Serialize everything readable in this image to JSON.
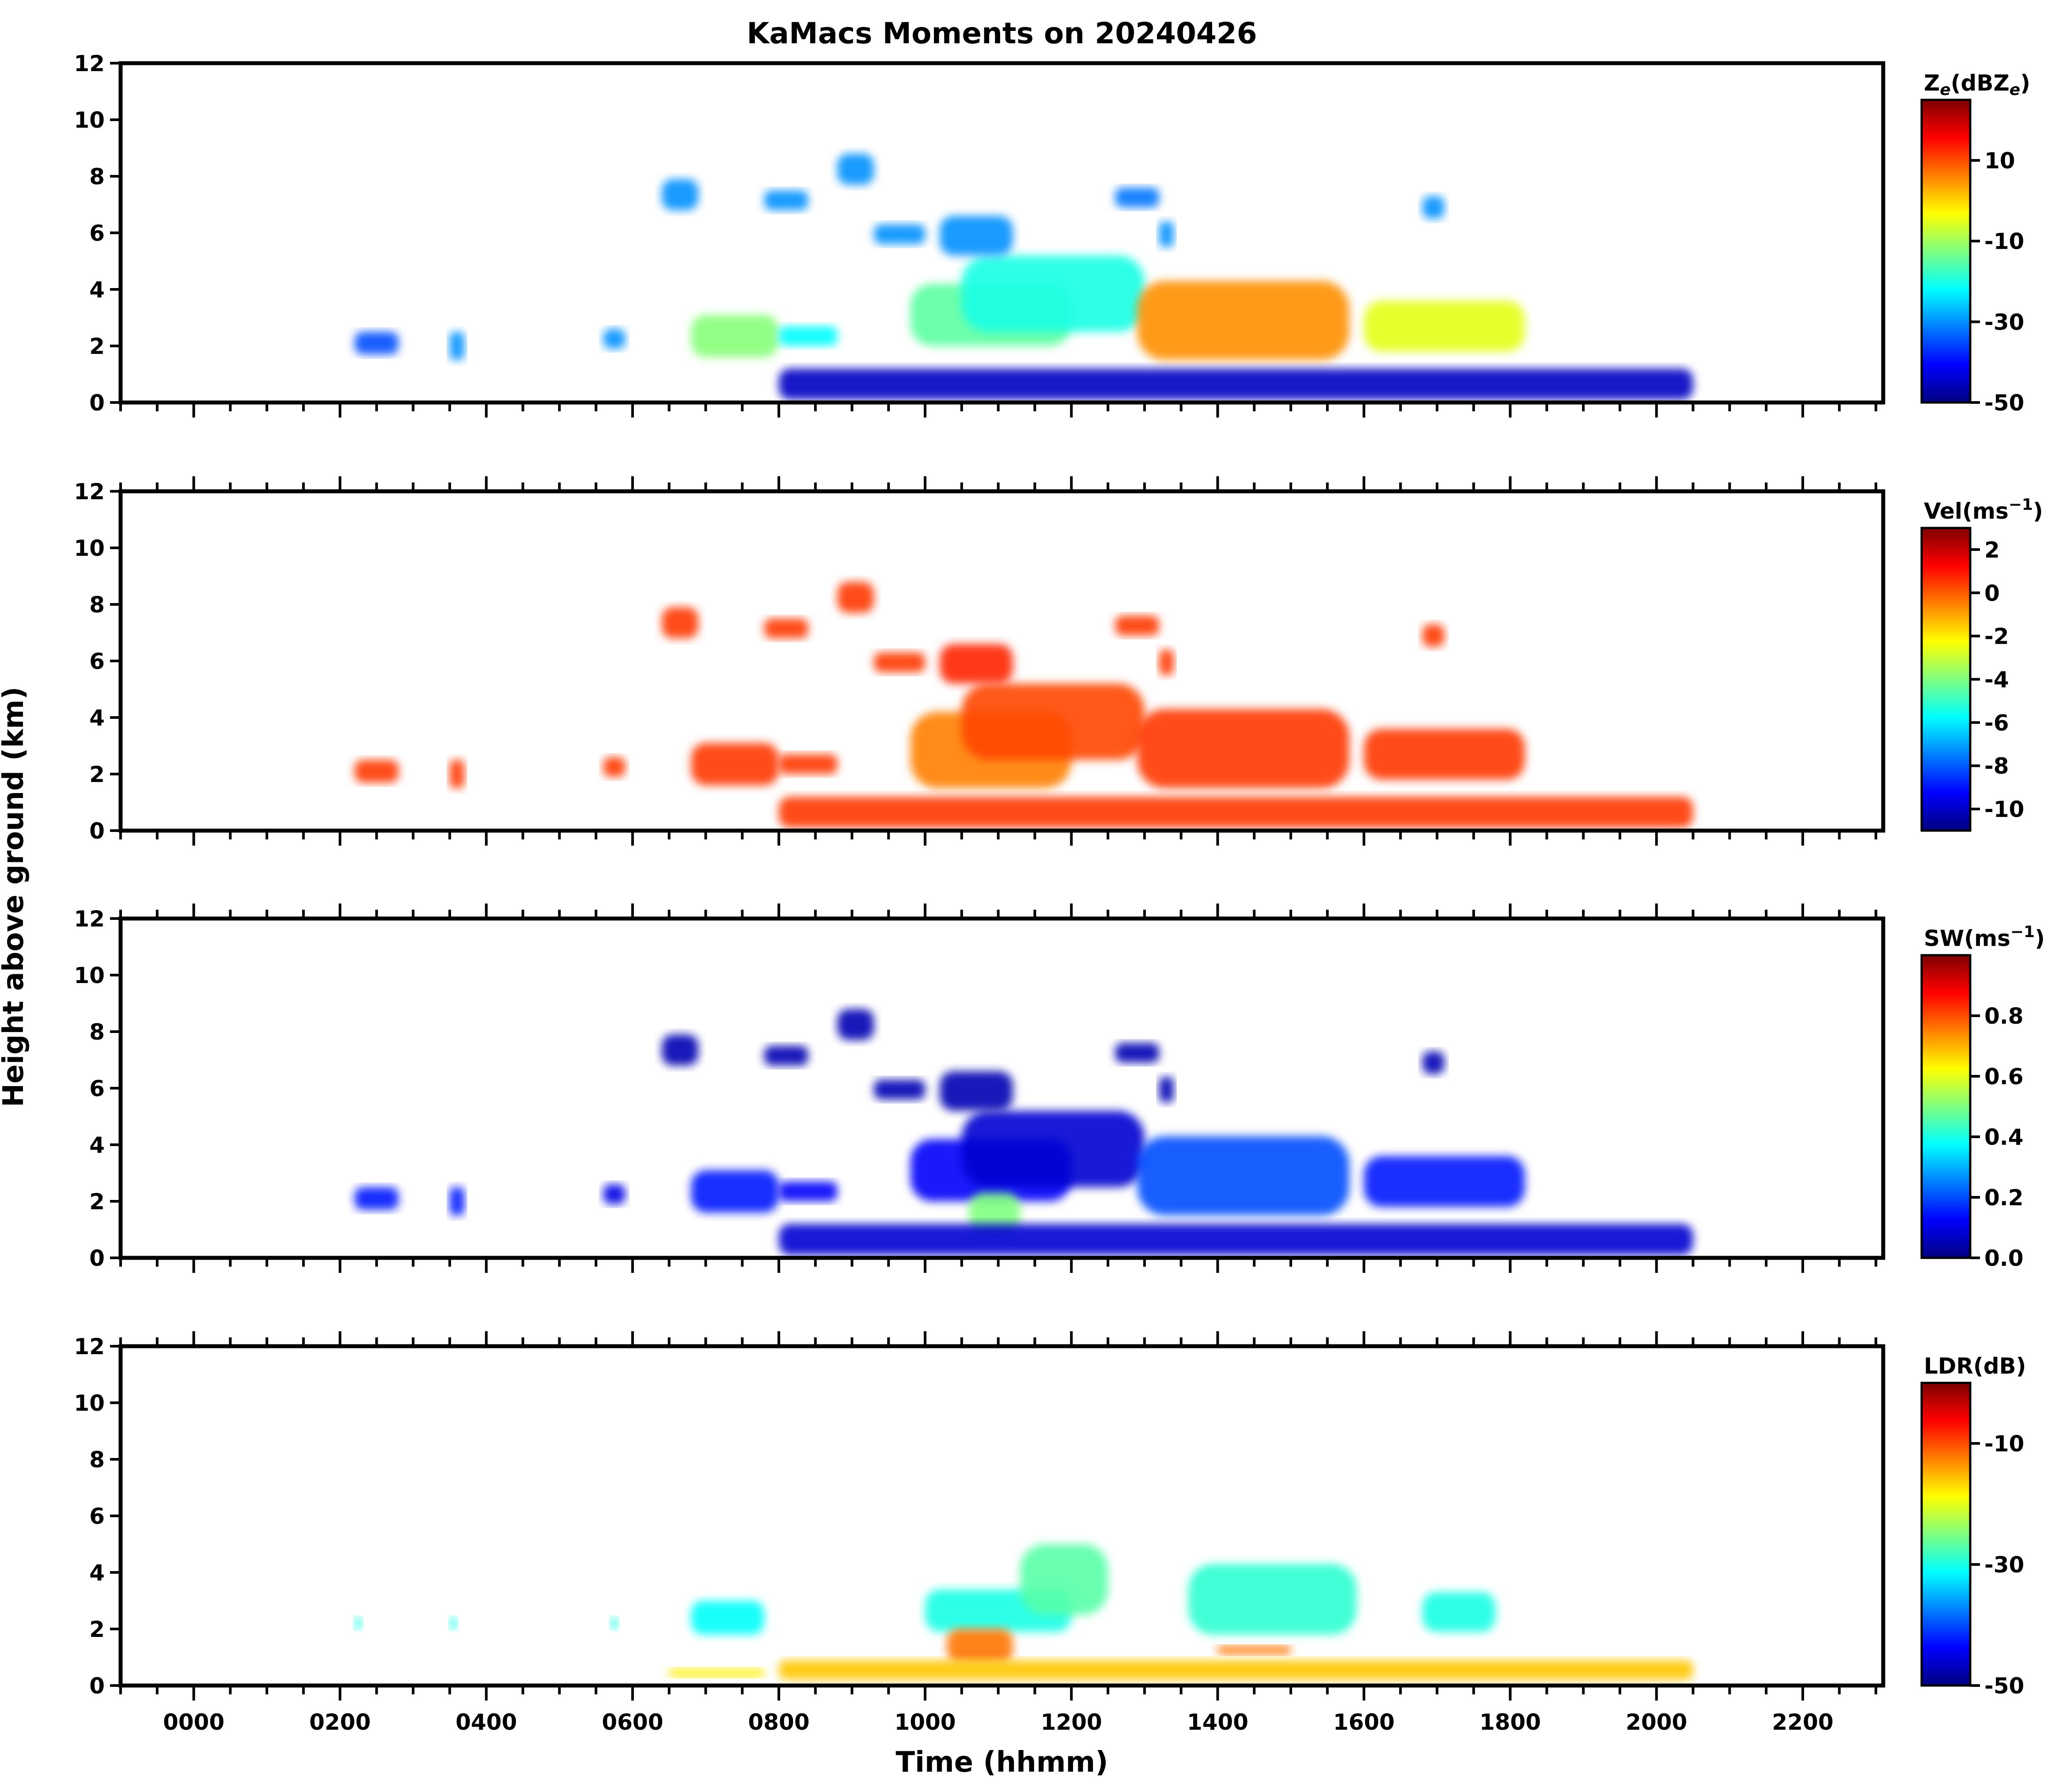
{
  "chart_data": {
    "type": "heatmap",
    "title": "KaMacs Moments on 20240426",
    "xlabel": "Time (hhmm)",
    "ylabel": "Height above ground (km)",
    "x_ticks": [
      "0000",
      "0200",
      "0400",
      "0600",
      "0800",
      "1000",
      "1200",
      "1400",
      "1600",
      "1800",
      "2000",
      "2200"
    ],
    "x_tick_hours": [
      0,
      2,
      4,
      6,
      8,
      10,
      12,
      14,
      16,
      18,
      20,
      22
    ],
    "xlim_hours": [
      -1,
      23.1
    ],
    "y_ticks": [
      "0",
      "2",
      "4",
      "6",
      "8",
      "10",
      "12"
    ],
    "y_tick_values": [
      0,
      2,
      4,
      6,
      8,
      10,
      12
    ],
    "ylim": [
      0,
      12
    ],
    "colormap": [
      "#00007f",
      "#0000ff",
      "#007fff",
      "#00ffff",
      "#7fff7f",
      "#ffff00",
      "#ff7f00",
      "#ff0000",
      "#7f0000"
    ],
    "panels": [
      {
        "name": "reflectivity",
        "colorbar_label": "Z",
        "colorbar_sub": "e",
        "colorbar_label_rest": "(dBZ",
        "colorbar_sub2": "e",
        "colorbar_close": ")",
        "vmin": -50,
        "vmax": 25,
        "colorbar_ticks": [
          10,
          -10,
          -30,
          -50
        ],
        "colorbar_tick_labels": [
          "10",
          "-10",
          "-30",
          "-50"
        ],
        "echoes": [
          {
            "t0": 2.2,
            "t1": 2.8,
            "h0": 1.7,
            "h1": 2.5,
            "value": -35
          },
          {
            "t0": 3.5,
            "t1": 3.7,
            "h0": 1.5,
            "h1": 2.5,
            "value": -30
          },
          {
            "t0": 5.6,
            "t1": 5.9,
            "h0": 1.9,
            "h1": 2.6,
            "value": -30
          },
          {
            "t0": 6.8,
            "t1": 8.0,
            "h0": 1.6,
            "h1": 3.1,
            "value": -12
          },
          {
            "t0": 8.0,
            "t1": 8.8,
            "h0": 2.0,
            "h1": 2.7,
            "value": -22
          },
          {
            "t0": 9.8,
            "t1": 12.0,
            "h0": 2.0,
            "h1": 4.2,
            "value": -15
          },
          {
            "t0": 10.5,
            "t1": 13.0,
            "h0": 2.5,
            "h1": 5.2,
            "value": -20
          },
          {
            "t0": 12.9,
            "t1": 15.8,
            "h0": 1.5,
            "h1": 4.3,
            "value": 5
          },
          {
            "t0": 16.0,
            "t1": 18.2,
            "h0": 1.8,
            "h1": 3.6,
            "value": -5
          },
          {
            "t0": 10.2,
            "t1": 11.2,
            "h0": 5.2,
            "h1": 6.6,
            "value": -30
          },
          {
            "t0": 9.3,
            "t1": 10.0,
            "h0": 5.6,
            "h1": 6.3,
            "value": -30
          },
          {
            "t0": 6.4,
            "t1": 6.9,
            "h0": 6.8,
            "h1": 7.9,
            "value": -30
          },
          {
            "t0": 7.8,
            "t1": 8.4,
            "h0": 6.8,
            "h1": 7.5,
            "value": -30
          },
          {
            "t0": 8.8,
            "t1": 9.3,
            "h0": 7.7,
            "h1": 8.8,
            "value": -30
          },
          {
            "t0": 12.6,
            "t1": 13.2,
            "h0": 6.9,
            "h1": 7.6,
            "value": -32
          },
          {
            "t0": 16.8,
            "t1": 17.1,
            "h0": 6.5,
            "h1": 7.3,
            "value": -30
          },
          {
            "t0": 13.2,
            "t1": 13.4,
            "h0": 5.5,
            "h1": 6.4,
            "value": -30
          },
          {
            "t0": 8.0,
            "t1": 20.5,
            "h0": 0.1,
            "h1": 1.2,
            "value": -45
          }
        ]
      },
      {
        "name": "velocity",
        "colorbar_label": "Vel(ms",
        "colorbar_sup": "−1",
        "colorbar_close": ")",
        "vmin": -11,
        "vmax": 3,
        "colorbar_ticks": [
          2,
          0,
          -2,
          -4,
          -6,
          -8,
          -10
        ],
        "colorbar_tick_labels": [
          "2",
          "0",
          "-2",
          "-4",
          "-6",
          "-8",
          "-10"
        ],
        "echoes": [
          {
            "t0": 2.2,
            "t1": 2.8,
            "h0": 1.7,
            "h1": 2.5,
            "value": 0.5
          },
          {
            "t0": 3.5,
            "t1": 3.7,
            "h0": 1.5,
            "h1": 2.5,
            "value": 0.5
          },
          {
            "t0": 5.6,
            "t1": 5.9,
            "h0": 1.9,
            "h1": 2.6,
            "value": 0.5
          },
          {
            "t0": 6.8,
            "t1": 8.0,
            "h0": 1.6,
            "h1": 3.1,
            "value": 0.5
          },
          {
            "t0": 8.0,
            "t1": 8.8,
            "h0": 2.0,
            "h1": 2.7,
            "value": 0.5
          },
          {
            "t0": 9.8,
            "t1": 12.0,
            "h0": 1.5,
            "h1": 4.2,
            "value": -0.5
          },
          {
            "t0": 10.5,
            "t1": 13.0,
            "h0": 2.5,
            "h1": 5.2,
            "value": 0.3
          },
          {
            "t0": 12.9,
            "t1": 15.8,
            "h0": 1.5,
            "h1": 4.3,
            "value": 0.5
          },
          {
            "t0": 16.0,
            "t1": 18.2,
            "h0": 1.8,
            "h1": 3.6,
            "value": 0.5
          },
          {
            "t0": 10.2,
            "t1": 11.2,
            "h0": 5.2,
            "h1": 6.6,
            "value": 0.8
          },
          {
            "t0": 9.3,
            "t1": 10.0,
            "h0": 5.6,
            "h1": 6.3,
            "value": 0.5
          },
          {
            "t0": 6.4,
            "t1": 6.9,
            "h0": 6.8,
            "h1": 7.9,
            "value": 0.5
          },
          {
            "t0": 7.8,
            "t1": 8.4,
            "h0": 6.8,
            "h1": 7.5,
            "value": 0.5
          },
          {
            "t0": 8.8,
            "t1": 9.3,
            "h0": 7.7,
            "h1": 8.8,
            "value": 0.5
          },
          {
            "t0": 12.6,
            "t1": 13.2,
            "h0": 6.9,
            "h1": 7.6,
            "value": 0.5
          },
          {
            "t0": 16.8,
            "t1": 17.1,
            "h0": 6.5,
            "h1": 7.3,
            "value": 0.5
          },
          {
            "t0": 13.2,
            "t1": 13.4,
            "h0": 5.5,
            "h1": 6.4,
            "value": 0.5
          },
          {
            "t0": 8.0,
            "t1": 20.5,
            "h0": 0.1,
            "h1": 1.2,
            "value": 0.5
          }
        ]
      },
      {
        "name": "spectrum_width",
        "colorbar_label": "SW(ms",
        "colorbar_sup": "−1",
        "colorbar_close": ")",
        "vmin": 0,
        "vmax": 1.0,
        "colorbar_ticks": [
          0.8,
          0.6,
          0.4,
          0.2,
          0.0
        ],
        "colorbar_tick_labels": [
          "0.8",
          "0.6",
          "0.4",
          "0.2",
          "0.0"
        ],
        "echoes": [
          {
            "t0": 2.2,
            "t1": 2.8,
            "h0": 1.7,
            "h1": 2.5,
            "value": 0.15
          },
          {
            "t0": 3.5,
            "t1": 3.7,
            "h0": 1.5,
            "h1": 2.5,
            "value": 0.15
          },
          {
            "t0": 5.6,
            "t1": 5.9,
            "h0": 1.9,
            "h1": 2.6,
            "value": 0.1
          },
          {
            "t0": 6.8,
            "t1": 8.0,
            "h0": 1.6,
            "h1": 3.1,
            "value": 0.15
          },
          {
            "t0": 8.0,
            "t1": 8.8,
            "h0": 2.0,
            "h1": 2.7,
            "value": 0.12
          },
          {
            "t0": 9.8,
            "t1": 12.0,
            "h0": 2.0,
            "h1": 4.2,
            "value": 0.12
          },
          {
            "t0": 10.5,
            "t1": 13.0,
            "h0": 2.5,
            "h1": 5.2,
            "value": 0.08
          },
          {
            "t0": 12.9,
            "t1": 15.8,
            "h0": 1.5,
            "h1": 4.3,
            "value": 0.2
          },
          {
            "t0": 16.0,
            "t1": 18.2,
            "h0": 1.8,
            "h1": 3.6,
            "value": 0.15
          },
          {
            "t0": 10.2,
            "t1": 11.2,
            "h0": 5.2,
            "h1": 6.6,
            "value": 0.05
          },
          {
            "t0": 9.3,
            "t1": 10.0,
            "h0": 5.6,
            "h1": 6.3,
            "value": 0.05
          },
          {
            "t0": 6.4,
            "t1": 6.9,
            "h0": 6.8,
            "h1": 7.9,
            "value": 0.05
          },
          {
            "t0": 7.8,
            "t1": 8.4,
            "h0": 6.8,
            "h1": 7.5,
            "value": 0.05
          },
          {
            "t0": 8.8,
            "t1": 9.3,
            "h0": 7.7,
            "h1": 8.8,
            "value": 0.05
          },
          {
            "t0": 12.6,
            "t1": 13.2,
            "h0": 6.9,
            "h1": 7.6,
            "value": 0.05
          },
          {
            "t0": 16.8,
            "t1": 17.1,
            "h0": 6.5,
            "h1": 7.3,
            "value": 0.05
          },
          {
            "t0": 13.2,
            "t1": 13.4,
            "h0": 5.5,
            "h1": 6.4,
            "value": 0.05
          },
          {
            "t0": 10.6,
            "t1": 11.3,
            "h0": 0.8,
            "h1": 2.3,
            "value": 0.5
          },
          {
            "t0": 8.0,
            "t1": 20.5,
            "h0": 0.1,
            "h1": 1.2,
            "value": 0.08
          }
        ]
      },
      {
        "name": "ldr",
        "colorbar_label": "LDR(dB)",
        "vmin": -50,
        "vmax": 0,
        "colorbar_ticks": [
          -10,
          -30,
          -50
        ],
        "colorbar_tick_labels": [
          "-10",
          "-30",
          "-50"
        ],
        "echoes": [
          {
            "t0": 6.8,
            "t1": 7.8,
            "h0": 1.8,
            "h1": 3.0,
            "value": -31
          },
          {
            "t0": 10.0,
            "t1": 12.0,
            "h0": 1.9,
            "h1": 3.4,
            "value": -30
          },
          {
            "t0": 11.3,
            "t1": 12.5,
            "h0": 2.5,
            "h1": 5.0,
            "value": -27
          },
          {
            "t0": 13.6,
            "t1": 15.9,
            "h0": 1.8,
            "h1": 4.3,
            "value": -29
          },
          {
            "t0": 16.8,
            "t1": 17.8,
            "h0": 1.9,
            "h1": 3.3,
            "value": -30
          },
          {
            "t0": 2.2,
            "t1": 2.3,
            "h0": 2.0,
            "h1": 2.4,
            "value": -30
          },
          {
            "t0": 3.5,
            "t1": 3.6,
            "h0": 2.0,
            "h1": 2.4,
            "value": -30
          },
          {
            "t0": 5.7,
            "t1": 5.8,
            "h0": 2.0,
            "h1": 2.4,
            "value": -30
          },
          {
            "t0": 10.3,
            "t1": 11.2,
            "h0": 0.8,
            "h1": 2.0,
            "value": -12
          },
          {
            "t0": 14.0,
            "t1": 15.0,
            "h0": 1.1,
            "h1": 1.4,
            "value": -12
          },
          {
            "t0": 8.0,
            "t1": 20.5,
            "h0": 0.2,
            "h1": 0.9,
            "value": -16
          },
          {
            "t0": 6.5,
            "t1": 7.8,
            "h0": 0.3,
            "h1": 0.6,
            "value": -18
          }
        ]
      }
    ]
  }
}
